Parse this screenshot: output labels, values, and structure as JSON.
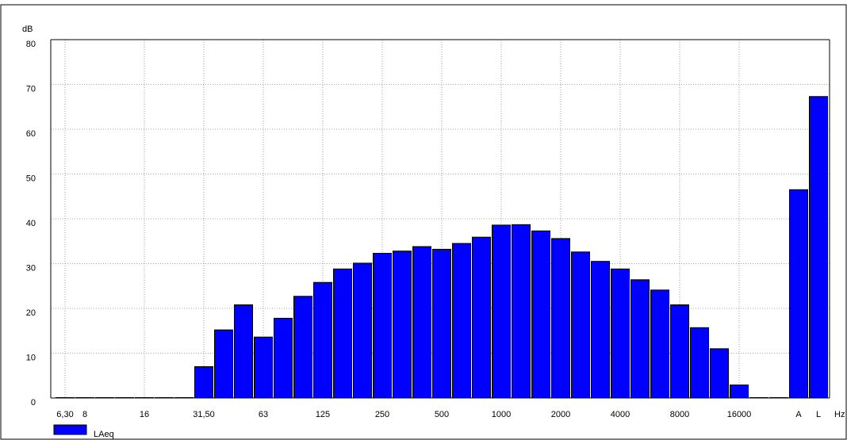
{
  "chart_data": {
    "type": "bar",
    "y_label": "dB",
    "x_label": "Hz",
    "categories": [
      "6,30",
      "8",
      null,
      null,
      "16",
      null,
      null,
      "31,50",
      null,
      null,
      "63",
      null,
      null,
      "125",
      null,
      null,
      "250",
      null,
      null,
      "500",
      null,
      null,
      "1000",
      null,
      null,
      "2000",
      null,
      null,
      "4000",
      null,
      null,
      "8000",
      null,
      null,
      "16000",
      null,
      null,
      "A",
      "L"
    ],
    "series": [
      {
        "name": "LAeq",
        "color": "#0000ff",
        "values": [
          0,
          0,
          0,
          0,
          0,
          0,
          0,
          7,
          15.2,
          20.8,
          13.6,
          17.8,
          22.7,
          25.8,
          28.8,
          30.1,
          32.3,
          32.8,
          33.8,
          33.2,
          34.5,
          35.9,
          38.6,
          38.7,
          37.3,
          35.6,
          32.6,
          30.5,
          28.8,
          26.4,
          24.1,
          20.8,
          15.7,
          11,
          2.9,
          0,
          0,
          46.5,
          67.3
        ]
      }
    ],
    "ylim": [
      0,
      80
    ],
    "yticks": [
      0,
      10,
      20,
      30,
      40,
      50,
      60,
      70,
      80
    ],
    "grid": true
  }
}
